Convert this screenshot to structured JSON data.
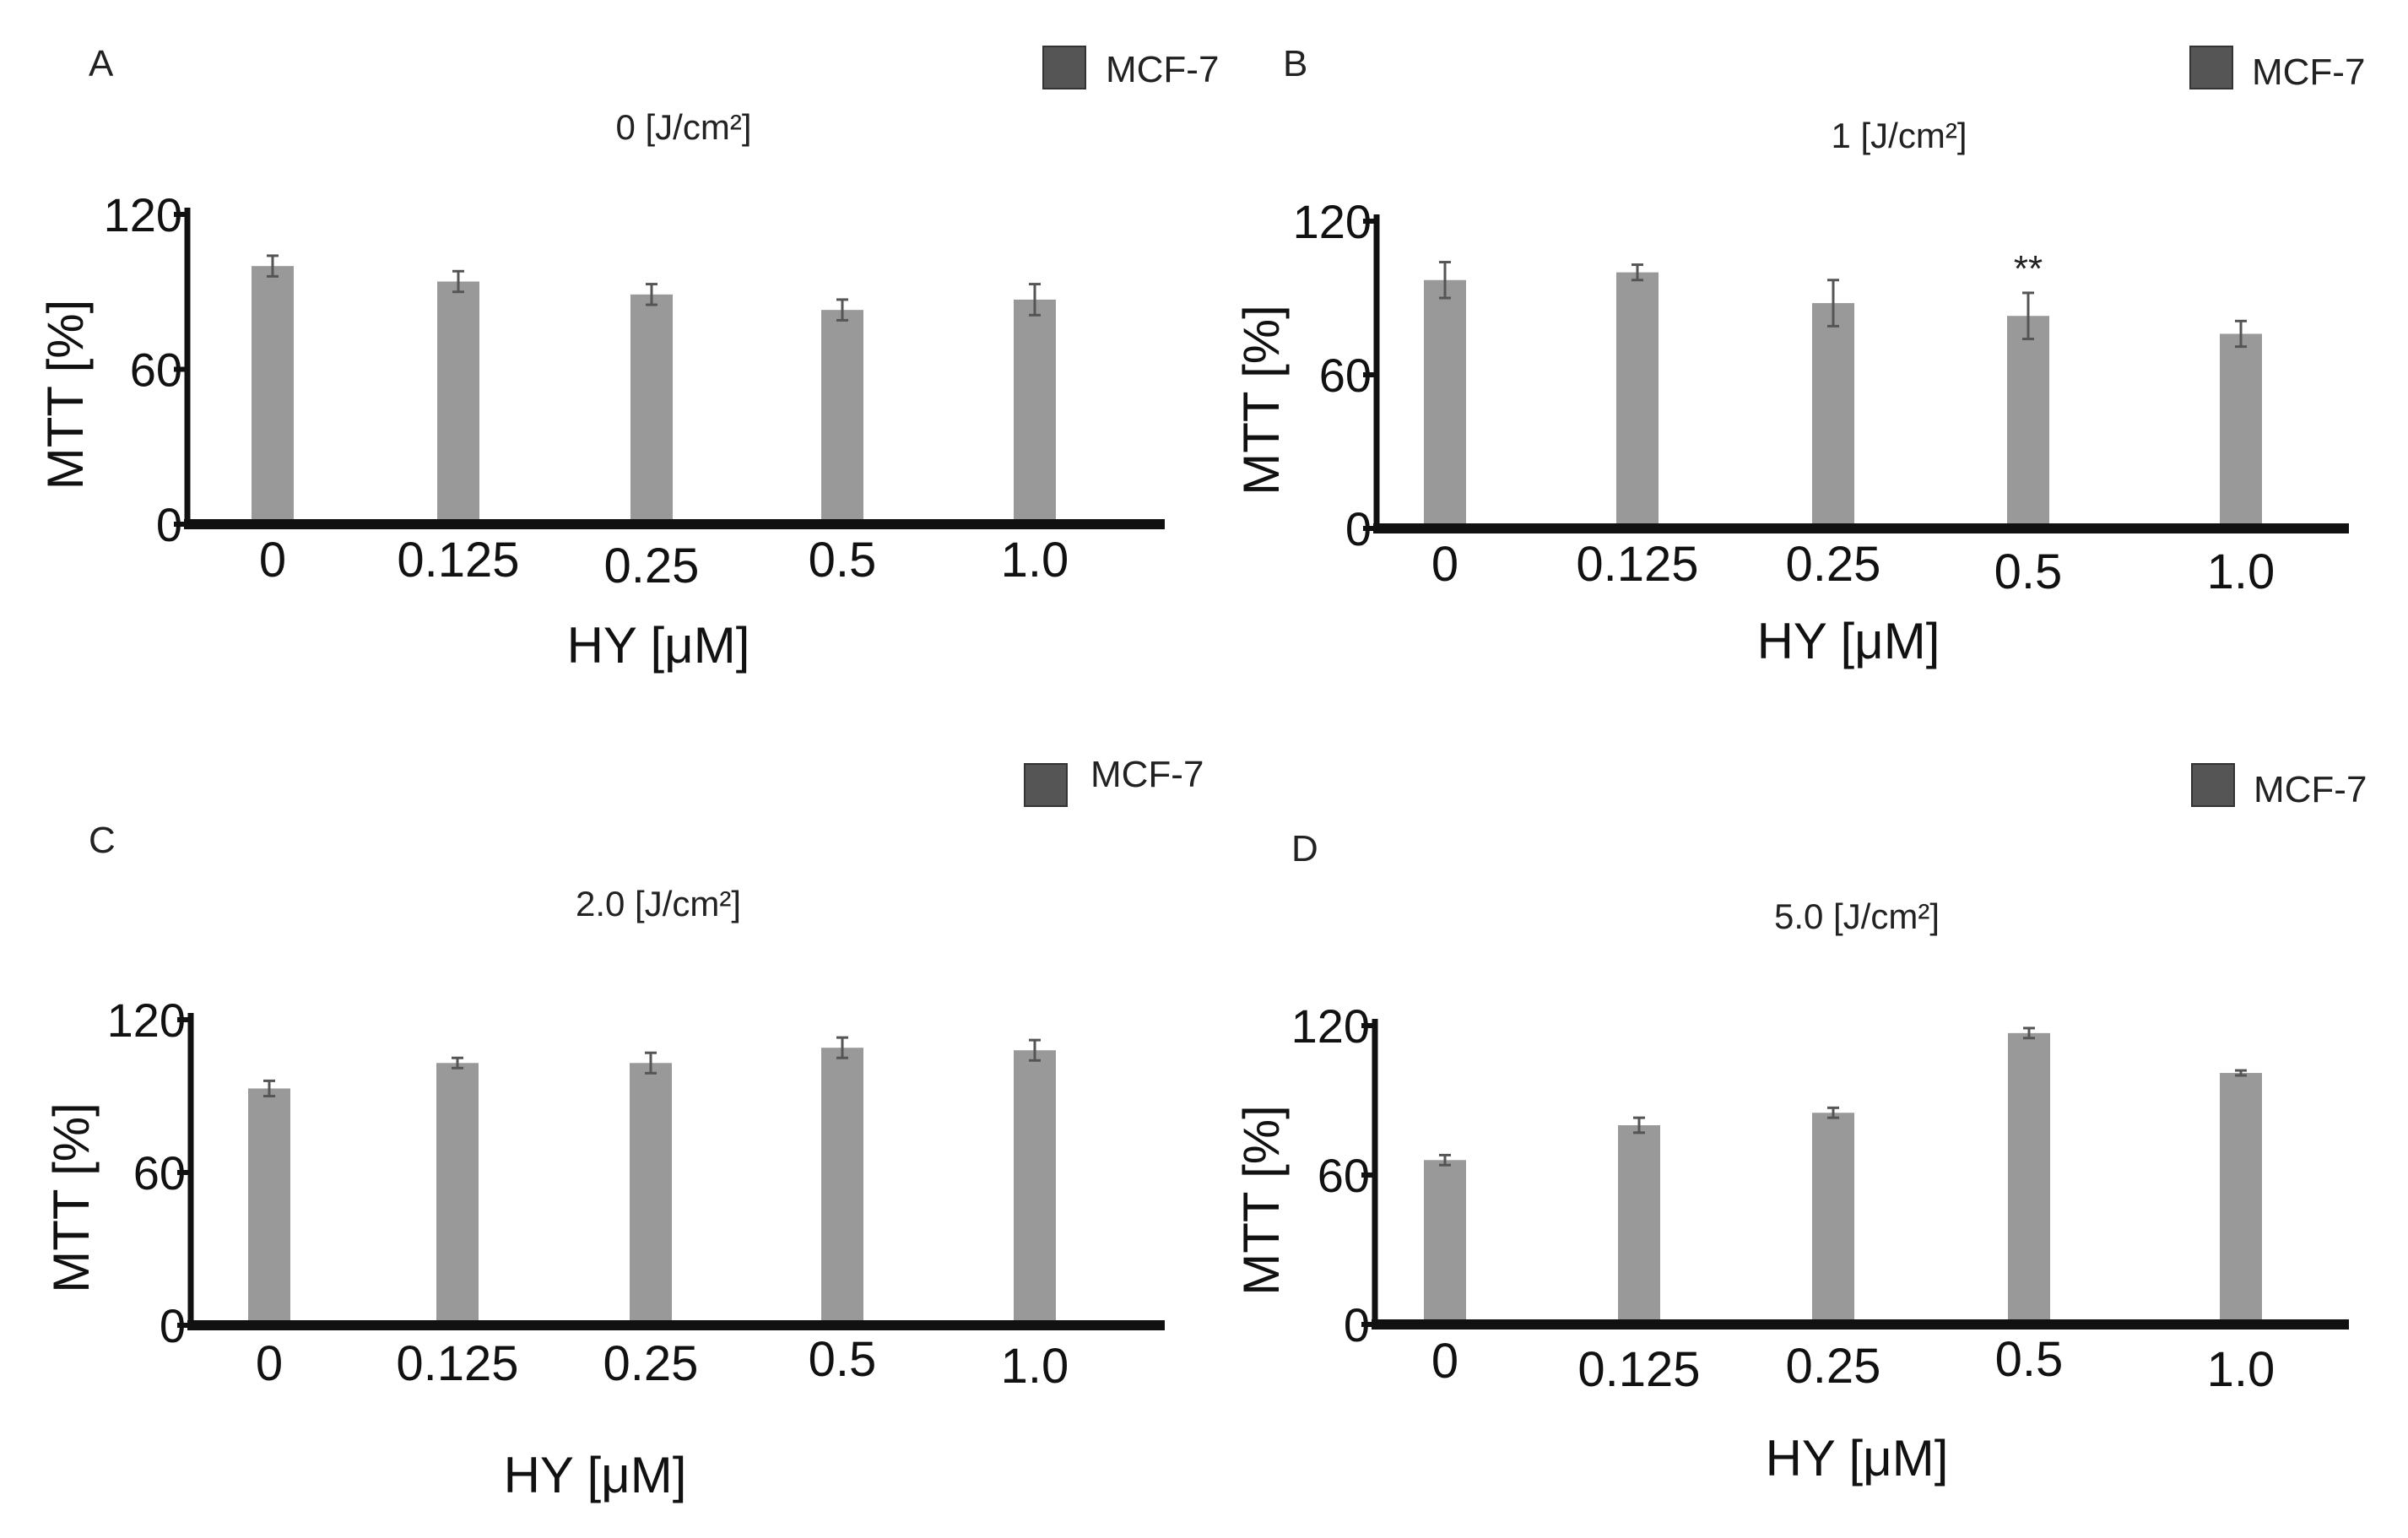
{
  "figure": {
    "legend_swatch_color": "#555555",
    "bar_color": "#999999",
    "axis_color": "#111111"
  },
  "chart_data": [
    {
      "type": "bar",
      "panel_label": "A",
      "title": "0 [J/cm²]",
      "categories": [
        "0",
        "0.125",
        "0.25",
        "0.5",
        "1.0"
      ],
      "series": [
        {
          "name": "MCF-7",
          "values": [
            100,
            94,
            89,
            83,
            87
          ],
          "errors": [
            4,
            4,
            4,
            4,
            6
          ]
        }
      ],
      "xlabel": "HY [μM]",
      "ylabel": "MTT [%]",
      "yticks": [
        "0",
        "60",
        "120"
      ],
      "ylim": [
        0,
        120
      ],
      "annotations": [],
      "legend": "top-right"
    },
    {
      "type": "bar",
      "panel_label": "B",
      "title": "1 [J/cm²]",
      "categories": [
        "0",
        "0.125",
        "0.25",
        "0.5",
        "1.0"
      ],
      "series": [
        {
          "name": "MCF-7",
          "values": [
            97,
            100,
            88,
            83,
            76
          ],
          "errors": [
            7,
            3,
            9,
            9,
            5
          ]
        }
      ],
      "xlabel": "HY [μM]",
      "ylabel": "MTT [%]",
      "yticks": [
        "0",
        "60",
        "120"
      ],
      "ylim": [
        0,
        120
      ],
      "annotations": [
        {
          "category": "0.5",
          "text": "**"
        }
      ],
      "legend": "top-right"
    },
    {
      "type": "bar",
      "panel_label": "C",
      "title": "2.0 [J/cm²]",
      "categories": [
        "0",
        "0.125",
        "0.25",
        "0.5",
        "1.0"
      ],
      "series": [
        {
          "name": "MCF-7",
          "values": [
            93,
            103,
            103,
            109,
            108
          ],
          "errors": [
            3,
            2,
            4,
            4,
            4
          ]
        }
      ],
      "xlabel": "HY [μM]",
      "ylabel": "MTT [%]",
      "yticks": [
        "0",
        "60",
        "120"
      ],
      "ylim": [
        0,
        120
      ],
      "annotations": [],
      "legend": "top-right"
    },
    {
      "type": "bar",
      "panel_label": "D",
      "title": "5.0 [J/cm²]",
      "categories": [
        "0",
        "0.125",
        "0.25",
        "0.5",
        "1.0"
      ],
      "series": [
        {
          "name": "MCF-7",
          "values": [
            66,
            80,
            85,
            117,
            101
          ],
          "errors": [
            2,
            3,
            2,
            2,
            1
          ]
        }
      ],
      "xlabel": "HY [μM]",
      "ylabel": "MTT [%]",
      "yticks": [
        "0",
        "60",
        "120"
      ],
      "ylim": [
        0,
        120
      ],
      "annotations": [],
      "legend": "top-right"
    }
  ]
}
